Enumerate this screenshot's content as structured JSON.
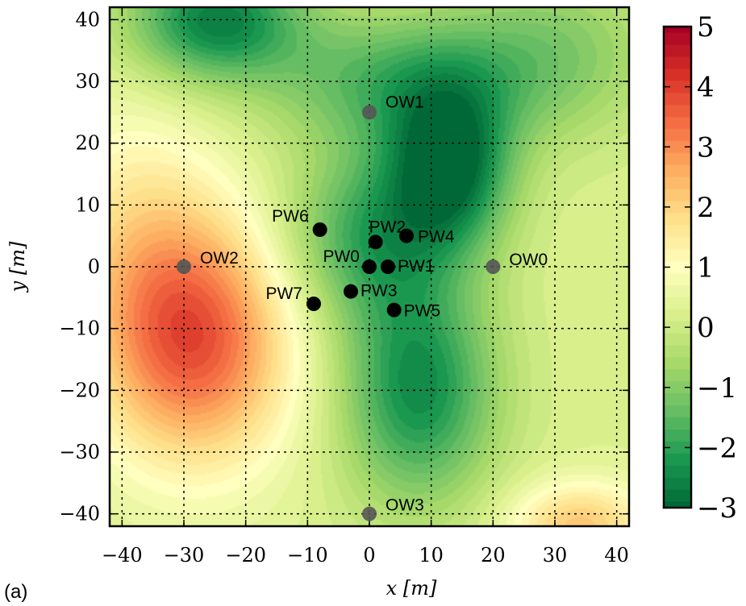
{
  "chart_data": {
    "type": "heatmap",
    "title": "",
    "panel_label": "(a)",
    "xlabel": "x [m]",
    "ylabel": "y [m]",
    "xlim": [
      -42,
      42
    ],
    "ylim": [
      -42,
      42
    ],
    "grid": true,
    "x_ticks": [
      -40,
      -30,
      -20,
      -10,
      0,
      10,
      20,
      30,
      40
    ],
    "x_tick_labels": [
      "−40",
      "−30",
      "−20",
      "−10",
      "0",
      "10",
      "20",
      "30",
      "40"
    ],
    "y_ticks": [
      -40,
      -30,
      -20,
      -10,
      0,
      10,
      20,
      30,
      40
    ],
    "y_tick_labels": [
      "−40",
      "−30",
      "−20",
      "−10",
      "0",
      "10",
      "20",
      "30",
      "40"
    ],
    "colorbar": {
      "min": -3,
      "max": 5,
      "ticks": [
        -3,
        -2,
        -1,
        0,
        1,
        2,
        3,
        4,
        5
      ],
      "tick_labels": [
        "−3",
        "−2",
        "−1",
        "0",
        "1",
        "2",
        "3",
        "4",
        "5"
      ],
      "colormap": "RdYlGn_r"
    },
    "field_features": [
      {
        "kind": "high",
        "x": -28,
        "y": -12,
        "value": 3.6,
        "sx": 11,
        "sy": 14
      },
      {
        "kind": "high",
        "x": -38,
        "y": 5,
        "value": 1.3,
        "sx": 10,
        "sy": 16
      },
      {
        "kind": "high",
        "x": 34,
        "y": -42,
        "value": 2.2,
        "sx": 8,
        "sy": 5
      },
      {
        "kind": "low",
        "x": 13,
        "y": 16,
        "value": -2.8,
        "sx": 7,
        "sy": 9
      },
      {
        "kind": "low",
        "x": 8,
        "y": -20,
        "value": -2.4,
        "sx": 9,
        "sy": 13
      },
      {
        "kind": "low",
        "x": -25,
        "y": 40,
        "value": -2.6,
        "sx": 10,
        "sy": 7
      },
      {
        "kind": "low",
        "x": 0,
        "y": 5,
        "value": -1.8,
        "sx": 10,
        "sy": 10
      },
      {
        "kind": "low",
        "x": 5,
        "y": 30,
        "value": -1.6,
        "sx": 15,
        "sy": 8
      },
      {
        "kind": "low",
        "x": 30,
        "y": 35,
        "value": -0.9,
        "sx": 12,
        "sy": 10
      }
    ],
    "pumping_wells": [
      {
        "name": "PW0",
        "x": 0,
        "y": 0
      },
      {
        "name": "PW1",
        "x": 3,
        "y": 0
      },
      {
        "name": "PW2",
        "x": 1,
        "y": 4
      },
      {
        "name": "PW3",
        "x": -3,
        "y": -4
      },
      {
        "name": "PW4",
        "x": 6,
        "y": 5
      },
      {
        "name": "PW5",
        "x": 4,
        "y": -7
      },
      {
        "name": "PW6",
        "x": -8,
        "y": 6
      },
      {
        "name": "PW7",
        "x": -9,
        "y": -6
      }
    ],
    "observation_wells": [
      {
        "name": "OW0",
        "x": 20,
        "y": 0
      },
      {
        "name": "OW1",
        "x": 0,
        "y": 25
      },
      {
        "name": "OW2",
        "x": -30,
        "y": 0
      },
      {
        "name": "OW3",
        "x": 0,
        "y": -40
      }
    ],
    "colors": {
      "pumping_well": "#000000",
      "observation_well": "#555555"
    }
  }
}
